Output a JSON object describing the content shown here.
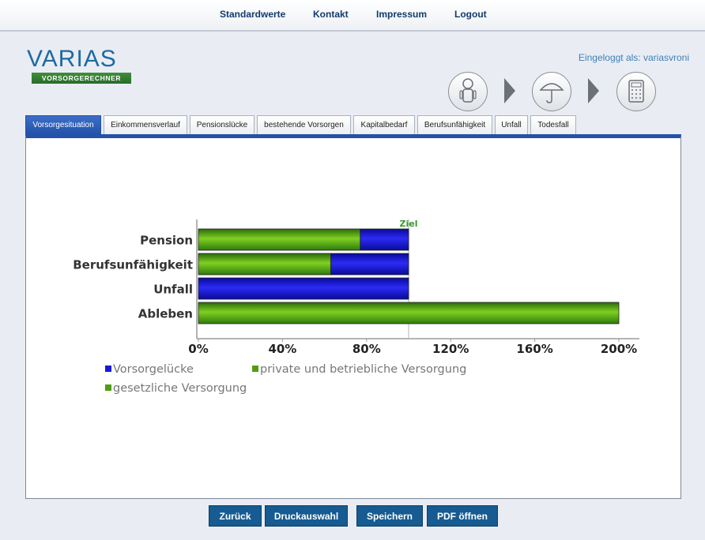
{
  "nav": {
    "links": [
      "Standardwerte",
      "Kontakt",
      "Impressum",
      "Logout"
    ]
  },
  "logo": {
    "word": "VARIAS",
    "sub": "VORSORGERECHNER"
  },
  "user": {
    "login_text": "Eingeloggt als: variasvroni"
  },
  "steps": [
    "person-icon",
    "umbrella-icon",
    "calculator-icon"
  ],
  "tabs": [
    "Vorsorgesituation",
    "Einkommensverlauf",
    "Pensionslücke",
    "bestehende Vorsorgen",
    "Kapitalbedarf",
    "Berufsunfähigkeit",
    "Unfall",
    "Todesfall"
  ],
  "active_tab": "Vorsorgesituation",
  "buttons": {
    "back": "Zurück",
    "print": "Druckauswahl",
    "save": "Speichern",
    "pdf": "PDF öffnen"
  },
  "chart_data": {
    "type": "bar",
    "orientation": "horizontal",
    "stacked": true,
    "categories": [
      "Pension",
      "Berufsunfähigkeit",
      "Unfall",
      "Ableben"
    ],
    "series": [
      {
        "name": "gesetzliche Versorgung",
        "color": "#4f9e10",
        "values": [
          77,
          63,
          0,
          200
        ]
      },
      {
        "name": "Vorsorgelücke",
        "color": "#1a1ad6",
        "values": [
          23,
          37,
          100,
          0
        ]
      }
    ],
    "legend": [
      "Vorsorgelücke",
      "private und betriebliche Versorgung",
      "gesetzliche Versorgung"
    ],
    "legend_colors": [
      "#1a1ad6",
      "#4f9e10",
      "#4f9e10"
    ],
    "x_ticks": [
      "0%",
      "40%",
      "80%",
      "120%",
      "160%",
      "200%"
    ],
    "xlim": [
      0,
      210
    ],
    "target": {
      "label": "Ziel",
      "value": 100
    },
    "legend_position": "bottom-left"
  }
}
